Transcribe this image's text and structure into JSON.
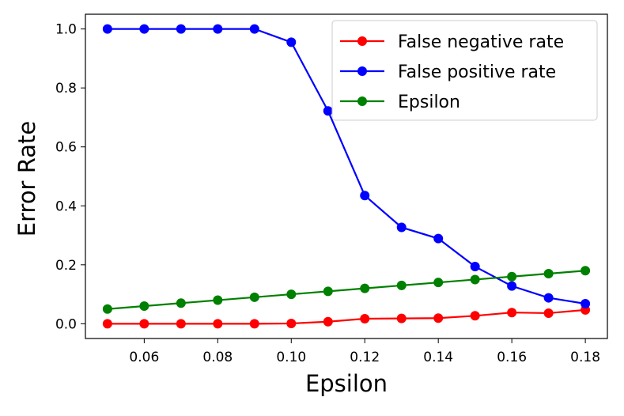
{
  "chart_data": {
    "type": "line",
    "title": "",
    "xlabel": "Epsilon",
    "ylabel": "Error Rate",
    "x": [
      0.05,
      0.06,
      0.07,
      0.08,
      0.09,
      0.1,
      0.11,
      0.12,
      0.13,
      0.14,
      0.15,
      0.16,
      0.17,
      0.18
    ],
    "xlim": [
      0.044,
      0.186
    ],
    "ylim": [
      -0.05,
      1.05
    ],
    "xticks": [
      "0.06",
      "0.08",
      "0.10",
      "0.12",
      "0.14",
      "0.16",
      "0.18"
    ],
    "yticks": [
      "0.0",
      "0.2",
      "0.4",
      "0.6",
      "0.8",
      "1.0"
    ],
    "grid": false,
    "legend_position": "top-right",
    "series": [
      {
        "name": "False negative rate",
        "color": "#ff0000",
        "values": [
          0.0,
          0.0,
          0.0,
          0.0,
          0.0,
          0.001,
          0.007,
          0.017,
          0.018,
          0.019,
          0.027,
          0.038,
          0.036,
          0.047
        ]
      },
      {
        "name": "False positive rate",
        "color": "#0000ff",
        "values": [
          1.0,
          1.0,
          1.0,
          1.0,
          1.0,
          0.955,
          0.722,
          0.435,
          0.327,
          0.289,
          0.194,
          0.128,
          0.088,
          0.068
        ]
      },
      {
        "name": "Epsilon",
        "color": "#008000",
        "values": [
          0.05,
          0.06,
          0.07,
          0.08,
          0.09,
          0.1,
          0.11,
          0.12,
          0.13,
          0.14,
          0.15,
          0.16,
          0.17,
          0.18
        ]
      }
    ]
  }
}
